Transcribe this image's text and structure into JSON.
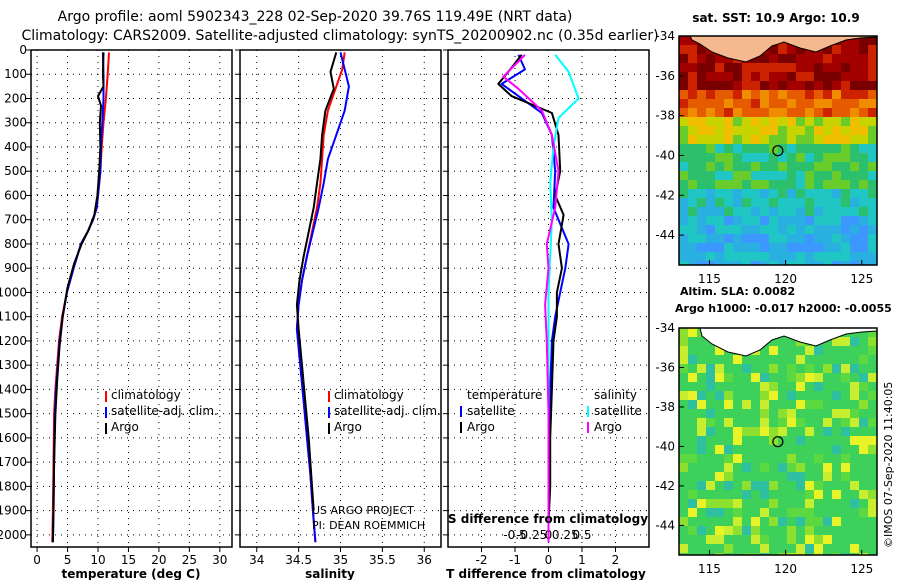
{
  "header": {
    "title_line1": "Argo profile: aoml 5902343_228 02-Sep-2020 39.76S 119.49E (NRT data)",
    "title_line2": "Climatology: CARS2009. Satellite-adjusted climatology: synTS_20200902.nc (0.35d earlier)"
  },
  "colors": {
    "climatology": "#ff0000",
    "satellite": "#0000ff",
    "argo": "#000000",
    "satellite_s": "#00ffff",
    "argo_s": "#ff00ff",
    "land": "#f5b88f"
  },
  "depth_axis": {
    "ticks": [
      0,
      100,
      200,
      300,
      400,
      500,
      600,
      700,
      800,
      900,
      1000,
      1100,
      1200,
      1300,
      1400,
      1500,
      1600,
      1700,
      1800,
      1900,
      2000
    ],
    "range": [
      0,
      2050
    ]
  },
  "chart_data": [
    {
      "type": "line",
      "name": "temperature-profile",
      "xlabel": "temperature (deg C)",
      "xlim": [
        -1,
        32
      ],
      "xticks": [
        0,
        5,
        10,
        15,
        20,
        25,
        30
      ],
      "ylim": [
        0,
        2050
      ],
      "legend": [
        "climatology",
        "satellite-adj. clim.",
        "Argo"
      ],
      "series": [
        {
          "name": "climatology",
          "color_key": "climatology",
          "x": [
            11.8,
            11.6,
            11.3,
            10.9,
            10.6,
            10.4,
            10.2,
            9.8,
            9.2,
            8.3,
            7.2,
            6.0,
            4.9,
            4.1,
            3.6,
            3.3,
            3.0,
            2.8,
            2.7,
            2.6,
            2.5
          ],
          "depth": [
            10,
            100,
            200,
            300,
            400,
            500,
            550,
            650,
            700,
            750,
            800,
            900,
            1000,
            1100,
            1200,
            1300,
            1400,
            1500,
            1700,
            1900,
            2030
          ]
        },
        {
          "name": "satellite-adj. clim.",
          "color_key": "satellite",
          "x": [
            10.8,
            10.9,
            10.9,
            10.7,
            10.5,
            10.4,
            10.2,
            9.8,
            9.2,
            8.3,
            7.2,
            6.0,
            4.9,
            4.2,
            3.7,
            3.4,
            3.1,
            2.9,
            2.8,
            2.7,
            2.6
          ],
          "depth": [
            10,
            100,
            200,
            300,
            400,
            500,
            550,
            650,
            700,
            750,
            800,
            900,
            1000,
            1100,
            1200,
            1300,
            1400,
            1500,
            1700,
            1900,
            2030
          ]
        },
        {
          "name": "Argo",
          "color_key": "argo",
          "x": [
            10.9,
            10.8,
            10.9,
            10.0,
            10.5,
            10.3,
            10.4,
            10.2,
            9.9,
            9.4,
            8.5,
            7.3,
            6.1,
            5.0,
            4.2,
            3.7,
            3.3,
            3.0,
            2.8,
            2.7,
            2.6
          ],
          "depth": [
            10,
            100,
            150,
            190,
            230,
            300,
            400,
            500,
            600,
            680,
            740,
            800,
            880,
            980,
            1100,
            1220,
            1360,
            1500,
            1700,
            1900,
            2030
          ]
        }
      ]
    },
    {
      "type": "line",
      "name": "salinity-profile",
      "xlabel": "salinity",
      "xlim": [
        33.8,
        36.2
      ],
      "xticks": [
        34,
        34.5,
        35,
        35.5,
        36
      ],
      "xticklabels": [
        "34",
        "34.5",
        "35",
        "35.5",
        "36"
      ],
      "ylim": [
        0,
        2050
      ],
      "legend": [
        "climatology",
        "satellite-adj. clim.",
        "Argo"
      ],
      "annotation_line1": "US ARGO PROJECT",
      "annotation_line2": "PI: DEAN ROEMMICH",
      "series": [
        {
          "name": "climatology",
          "color_key": "climatology",
          "x": [
            35.05,
            35.02,
            34.95,
            34.85,
            34.8,
            34.78,
            34.76,
            34.72,
            34.66,
            34.6,
            34.54,
            34.5,
            34.48,
            34.52,
            34.56,
            34.6,
            34.64,
            34.67,
            34.7
          ],
          "depth": [
            10,
            80,
            150,
            250,
            350,
            450,
            550,
            650,
            750,
            850,
            950,
            1050,
            1150,
            1300,
            1450,
            1600,
            1750,
            1900,
            2030
          ]
        },
        {
          "name": "satellite-adj. clim.",
          "color_key": "satellite",
          "x": [
            35.0,
            35.05,
            35.1,
            35.05,
            34.95,
            34.85,
            34.8,
            34.74,
            34.67,
            34.6,
            34.54,
            34.5,
            34.48,
            34.52,
            34.56,
            34.6,
            34.64,
            34.67,
            34.7
          ],
          "depth": [
            10,
            80,
            150,
            250,
            350,
            450,
            550,
            650,
            750,
            850,
            950,
            1050,
            1150,
            1300,
            1450,
            1600,
            1750,
            1900,
            2030
          ]
        },
        {
          "name": "Argo",
          "color_key": "argo",
          "x": [
            34.95,
            34.88,
            34.92,
            34.82,
            34.78,
            34.76,
            34.72,
            34.68,
            34.62,
            34.56,
            34.51,
            34.48,
            34.5,
            34.54,
            34.58,
            34.62,
            34.65,
            34.68
          ],
          "depth": [
            10,
            90,
            160,
            250,
            350,
            450,
            550,
            650,
            750,
            850,
            950,
            1050,
            1150,
            1300,
            1450,
            1600,
            1750,
            1900
          ]
        }
      ]
    },
    {
      "type": "line",
      "name": "difference-profile",
      "xlabel": "T difference from climatology",
      "xlim": [
        -3.0,
        3.0
      ],
      "xticks": [
        -2,
        -1,
        0,
        1,
        2
      ],
      "ylim": [
        0,
        2050
      ],
      "s_label": "S difference from climatology",
      "s_ticks": [
        -0.5,
        -0.25,
        0,
        0.25,
        0.5
      ],
      "s_ticklabels": [
        "-0.5",
        "-0.25",
        "0",
        "0.25",
        "0.5"
      ],
      "legend_temperature_title": "temperature",
      "legend_salinity_title": "salinity",
      "legend_satellite": "satellite",
      "legend_argo": "Argo",
      "series": [
        {
          "name": "T satellite",
          "color_key": "satellite",
          "x": [
            -0.9,
            -0.7,
            -1.4,
            -0.9,
            -0.2,
            0.1,
            0.2,
            0.15,
            0.3,
            0.6,
            0.5,
            0.35,
            0.2,
            0.1,
            0.05,
            0.03,
            0.02,
            0.0,
            0.0
          ],
          "depth": [
            20,
            80,
            140,
            190,
            260,
            350,
            500,
            650,
            700,
            800,
            900,
            1000,
            1100,
            1200,
            1400,
            1600,
            1800,
            1950,
            2030
          ]
        },
        {
          "name": "T Argo",
          "color_key": "argo",
          "x": [
            -0.8,
            -1.2,
            -1.5,
            -1.1,
            0.1,
            0.3,
            0.35,
            0.2,
            0.45,
            0.3,
            0.4,
            0.25,
            0.25,
            0.15,
            0.1,
            0.05,
            0.05,
            0.0,
            0.0
          ],
          "depth": [
            20,
            90,
            140,
            190,
            260,
            350,
            500,
            600,
            680,
            800,
            900,
            1000,
            1100,
            1200,
            1400,
            1600,
            1800,
            1950,
            2030
          ]
        },
        {
          "name": "S satellite",
          "color_key": "satellite_s",
          "x": [
            0.2,
            0.6,
            0.9,
            0.3,
            0.15,
            0.05,
            0.1,
            0.05,
            0.0,
            0.0,
            0.0,
            0.0,
            0.0
          ],
          "depth": [
            20,
            90,
            200,
            280,
            400,
            550,
            700,
            850,
            1000,
            1200,
            1500,
            1800,
            2030
          ]
        },
        {
          "name": "S Argo",
          "color_key": "argo_s",
          "x": [
            -0.7,
            -1.35,
            -0.9,
            -0.2,
            0.1,
            0.3,
            0.2,
            -0.05,
            0.0,
            -0.1,
            -0.05,
            0.0,
            0.0,
            0.0
          ],
          "depth": [
            20,
            110,
            160,
            250,
            350,
            500,
            650,
            800,
            900,
            1050,
            1200,
            1500,
            1800,
            2030
          ]
        }
      ]
    },
    {
      "type": "heatmap",
      "name": "sst-map",
      "title": "sat. SST: 10.9 Argo: 10.9",
      "xlim": [
        113,
        126
      ],
      "ylim": [
        -45.5,
        -34
      ],
      "xticks": [
        115,
        120,
        125
      ],
      "yticks": [
        -34,
        -36,
        -38,
        -40,
        -42,
        -44
      ],
      "marker": {
        "lon": 119.49,
        "lat": -39.76
      }
    },
    {
      "type": "heatmap",
      "name": "sla-map",
      "title_line1": "Altim. SLA: 0.0082",
      "title_line2": "Argo h1000: -0.017 h2000: -0.0055",
      "xlim": [
        113,
        126
      ],
      "ylim": [
        -45.5,
        -34
      ],
      "xticks": [
        115,
        120,
        125
      ],
      "yticks": [
        -34,
        -36,
        -38,
        -40,
        -42,
        -44
      ],
      "marker": {
        "lon": 119.49,
        "lat": -39.76
      }
    }
  ],
  "footer": {
    "credit": "©IMOS 07-Sep-2020 11:40:05"
  }
}
